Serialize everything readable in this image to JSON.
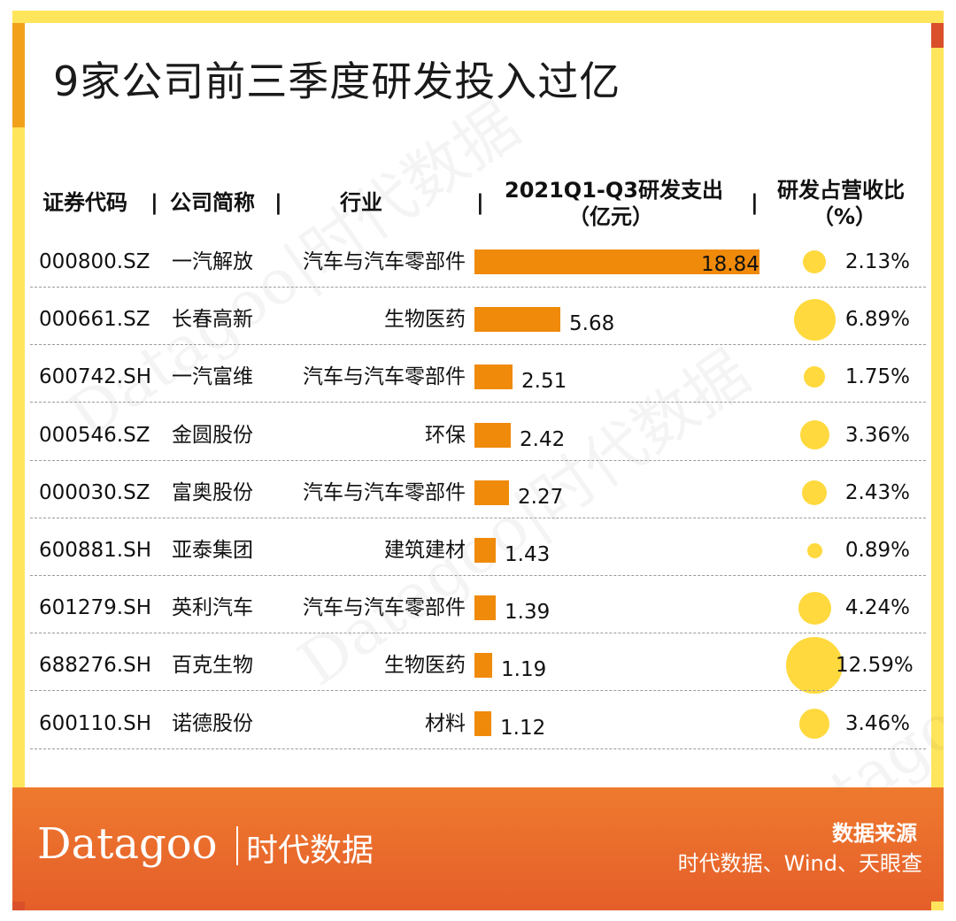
{
  "title": "9家公司前三季度研发投入过亿",
  "watermark": {
    "text": "Datagoo|时代数据"
  },
  "headers": {
    "code": "证券代码",
    "name": "公司简称",
    "industry": "行业",
    "rd_line1": "2021Q1-Q3研发支出",
    "rd_line2": "（亿元）",
    "ratio_line1": "研发占营收比",
    "ratio_line2": "（%）",
    "separator": "|"
  },
  "colors": {
    "bar": "#F08A0A",
    "bubble": "#FFD93D",
    "accent": "#FFE55C",
    "footer": "#EE7A2E"
  },
  "rows": [
    {
      "code": "000800.SZ",
      "name": "一汽解放",
      "industry": "汽车与汽车零部件",
      "rd": "18.84",
      "ratio": "2.13%"
    },
    {
      "code": "000661.SZ",
      "name": "长春高新",
      "industry": "生物医药",
      "rd": "5.68",
      "ratio": "6.89%"
    },
    {
      "code": "600742.SH",
      "name": "一汽富维",
      "industry": "汽车与汽车零部件",
      "rd": "2.51",
      "ratio": "1.75%"
    },
    {
      "code": "000546.SZ",
      "name": "金圆股份",
      "industry": "环保",
      "rd": "2.42",
      "ratio": "3.36%"
    },
    {
      "code": "000030.SZ",
      "name": "富奥股份",
      "industry": "汽车与汽车零部件",
      "rd": "2.27",
      "ratio": "2.43%"
    },
    {
      "code": "600881.SH",
      "name": "亚泰集团",
      "industry": "建筑建材",
      "rd": "1.43",
      "ratio": "0.89%"
    },
    {
      "code": "601279.SH",
      "name": "英利汽车",
      "industry": "汽车与汽车零部件",
      "rd": "1.39",
      "ratio": "4.24%"
    },
    {
      "code": "688276.SH",
      "name": "百克生物",
      "industry": "生物医药",
      "rd": "1.19",
      "ratio": "12.59%"
    },
    {
      "code": "600110.SH",
      "name": "诺德股份",
      "industry": "材料",
      "rd": "1.12",
      "ratio": "3.46%"
    }
  ],
  "chart_data": {
    "type": "bar",
    "categories": [
      "一汽解放",
      "长春高新",
      "一汽富维",
      "金圆股份",
      "富奥股份",
      "亚泰集团",
      "英利汽车",
      "百克生物",
      "诺德股份"
    ],
    "series": [
      {
        "name": "2021Q1-Q3研发支出（亿元）",
        "values": [
          18.84,
          5.68,
          2.51,
          2.42,
          2.27,
          1.43,
          1.39,
          1.19,
          1.12
        ]
      },
      {
        "name": "研发占营收比（%）",
        "values": [
          2.13,
          6.89,
          1.75,
          3.36,
          2.43,
          0.89,
          4.24,
          12.59,
          3.46
        ]
      }
    ],
    "title": "9家公司前三季度研发投入过亿"
  },
  "footer": {
    "logo": "Datagoo",
    "logo_cn": "时代数据",
    "source_title": "数据来源",
    "source_text": "时代数据、Wind、天眼查"
  }
}
